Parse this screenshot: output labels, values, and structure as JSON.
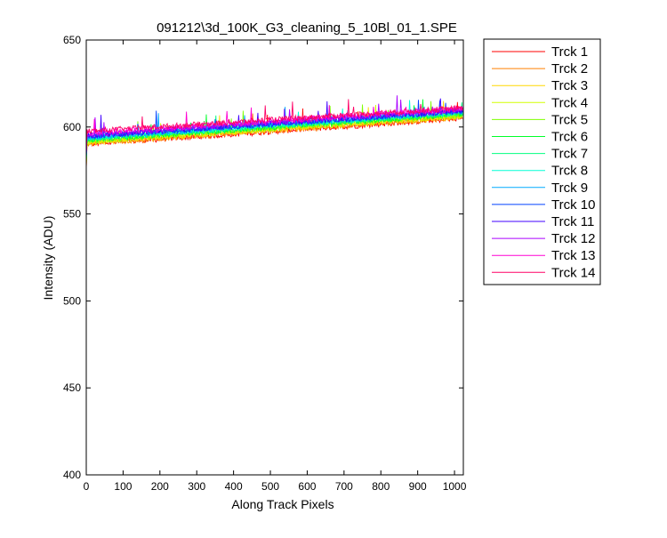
{
  "chart_data": {
    "type": "line",
    "title": "091212\\3d_100K_G3_cleaning_5_10Bl_01_1.SPE",
    "xlabel": "Along Track Pixels",
    "ylabel": "Intensity (ADU)",
    "xlim": [
      0,
      1024
    ],
    "ylim": [
      400,
      650
    ],
    "xticks": [
      0,
      100,
      200,
      300,
      400,
      500,
      600,
      700,
      800,
      900,
      1000
    ],
    "yticks": [
      400,
      450,
      500,
      550,
      600,
      650
    ],
    "grid": false,
    "legend_position": "outside-right",
    "series": [
      {
        "name": "Trck 1",
        "color": "#ff0000",
        "start": 590.0,
        "end": 605.0
      },
      {
        "name": "Trck 2",
        "color": "#ff7f00",
        "start": 590.5,
        "end": 605.5
      },
      {
        "name": "Trck 3",
        "color": "#ffd700",
        "start": 591.0,
        "end": 606.0
      },
      {
        "name": "Trck 4",
        "color": "#d4ff00",
        "start": 591.5,
        "end": 606.5
      },
      {
        "name": "Trck 5",
        "color": "#7fff00",
        "start": 592.0,
        "end": 607.0
      },
      {
        "name": "Trck 6",
        "color": "#00ff2a",
        "start": 592.5,
        "end": 607.5
      },
      {
        "name": "Trck 7",
        "color": "#00ff80",
        "start": 593.0,
        "end": 608.0
      },
      {
        "name": "Trck 8",
        "color": "#00ffd5",
        "start": 593.5,
        "end": 608.5
      },
      {
        "name": "Trck 9",
        "color": "#00aaff",
        "start": 594.0,
        "end": 609.0
      },
      {
        "name": "Trck 10",
        "color": "#0040ff",
        "start": 594.5,
        "end": 609.0
      },
      {
        "name": "Trck 11",
        "color": "#4000ff",
        "start": 595.0,
        "end": 609.5
      },
      {
        "name": "Trck 12",
        "color": "#aa00ff",
        "start": 595.5,
        "end": 610.0
      },
      {
        "name": "Trck 13",
        "color": "#ff00d4",
        "start": 596.5,
        "end": 610.5
      },
      {
        "name": "Trck 14",
        "color": "#ff0066",
        "start": 597.5,
        "end": 611.0
      }
    ]
  }
}
